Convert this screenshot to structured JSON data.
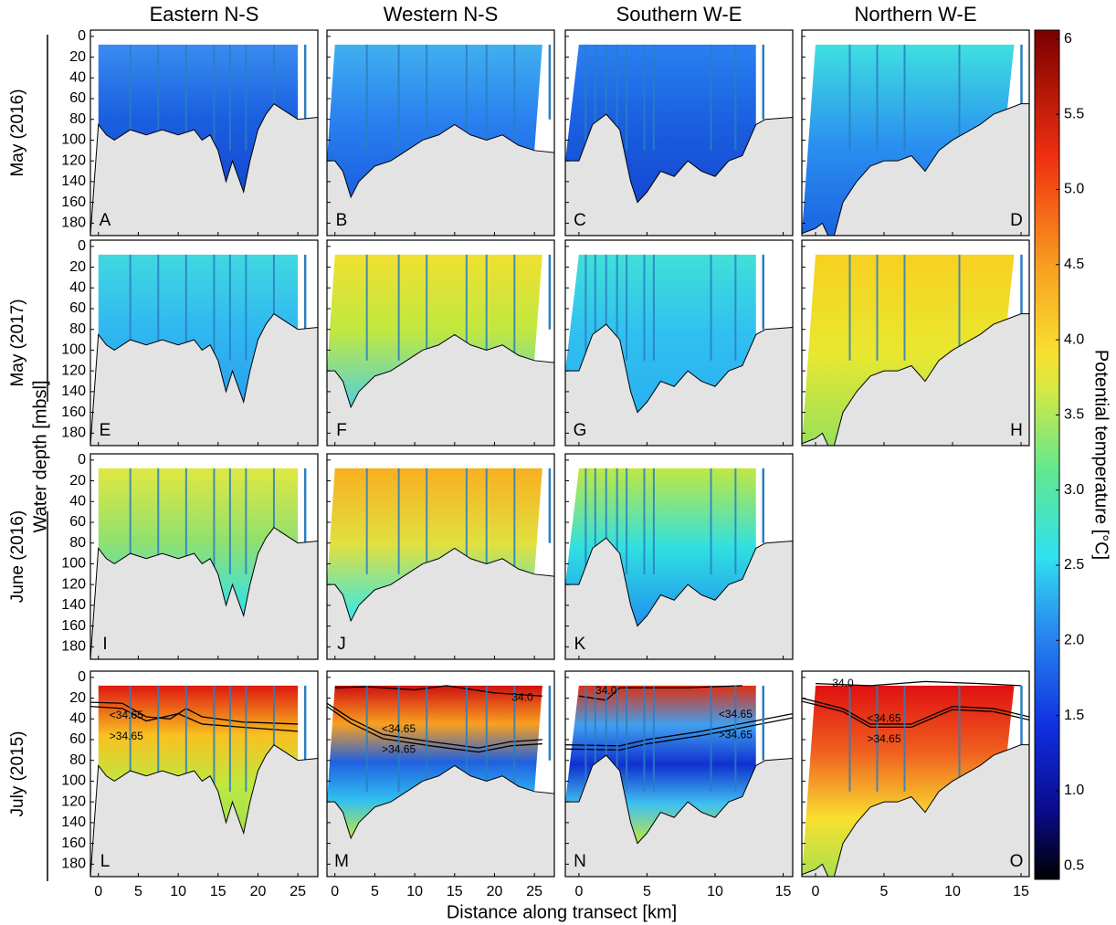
{
  "chart_data": {
    "type": "contour-grid",
    "y_label": "Water depth [mbsl]",
    "x_label": "Distance along transect [km]",
    "ylim": [
      -6,
      192
    ],
    "yticks": [
      0,
      20,
      40,
      60,
      80,
      100,
      120,
      140,
      160,
      180
    ],
    "columns": [
      {
        "title": "Eastern N-S",
        "xlim": [
          -1,
          27.5
        ],
        "xticks": [
          0,
          5,
          10,
          15,
          20,
          25
        ]
      },
      {
        "title": "Western N-S",
        "xlim": [
          -1,
          27.5
        ],
        "xticks": [
          0,
          5,
          10,
          15,
          20,
          25
        ]
      },
      {
        "title": "Southern W-E",
        "xlim": [
          -1,
          15.7
        ],
        "xticks": [
          0,
          5,
          10,
          15
        ]
      },
      {
        "title": "Northern W-E",
        "xlim": [
          -1,
          15.6
        ],
        "xticks": [
          0,
          5,
          10,
          15
        ]
      }
    ],
    "rows": [
      {
        "title": "May (2016)",
        "panels": [
          {
            "label": "A"
          },
          {
            "label": "B"
          },
          {
            "label": "C"
          },
          {
            "label": "D"
          }
        ]
      },
      {
        "title": "May (2017)",
        "panels": [
          {
            "label": "E"
          },
          {
            "label": "F"
          },
          {
            "label": "G"
          },
          {
            "label": "H"
          }
        ]
      },
      {
        "title": "June (2016)",
        "panels": [
          {
            "label": "I"
          },
          {
            "label": "J"
          },
          {
            "label": "K"
          }
        ]
      },
      {
        "title": "July (2015)",
        "panels": [
          {
            "label": "L",
            "contour_labels": [
              "<34.65",
              ">34.65"
            ]
          },
          {
            "label": "M",
            "contour_labels": [
              "34.0",
              "<34.65",
              ">34.65"
            ]
          },
          {
            "label": "N",
            "contour_labels": [
              "34.0",
              "<34.65",
              ">34.65"
            ]
          },
          {
            "label": "O",
            "contour_labels": [
              "34.0",
              "<34.65",
              ">34.65"
            ]
          }
        ]
      }
    ],
    "colorbar": {
      "label": "Potential temperature [°C]",
      "lim": [
        0.41,
        6.06
      ],
      "ticks": [
        {
          "value": 0.5,
          "label": "0.5"
        },
        {
          "value": 1,
          "label": "1.0"
        },
        1.5,
        {
          "value": 2,
          "label": "2.0"
        },
        2.5,
        {
          "value": 3,
          "label": "3.0"
        },
        3.5,
        {
          "value": 4,
          "label": "4.0"
        },
        4.5,
        {
          "value": 5,
          "label": "5.0"
        },
        5.5,
        6
      ]
    }
  }
}
